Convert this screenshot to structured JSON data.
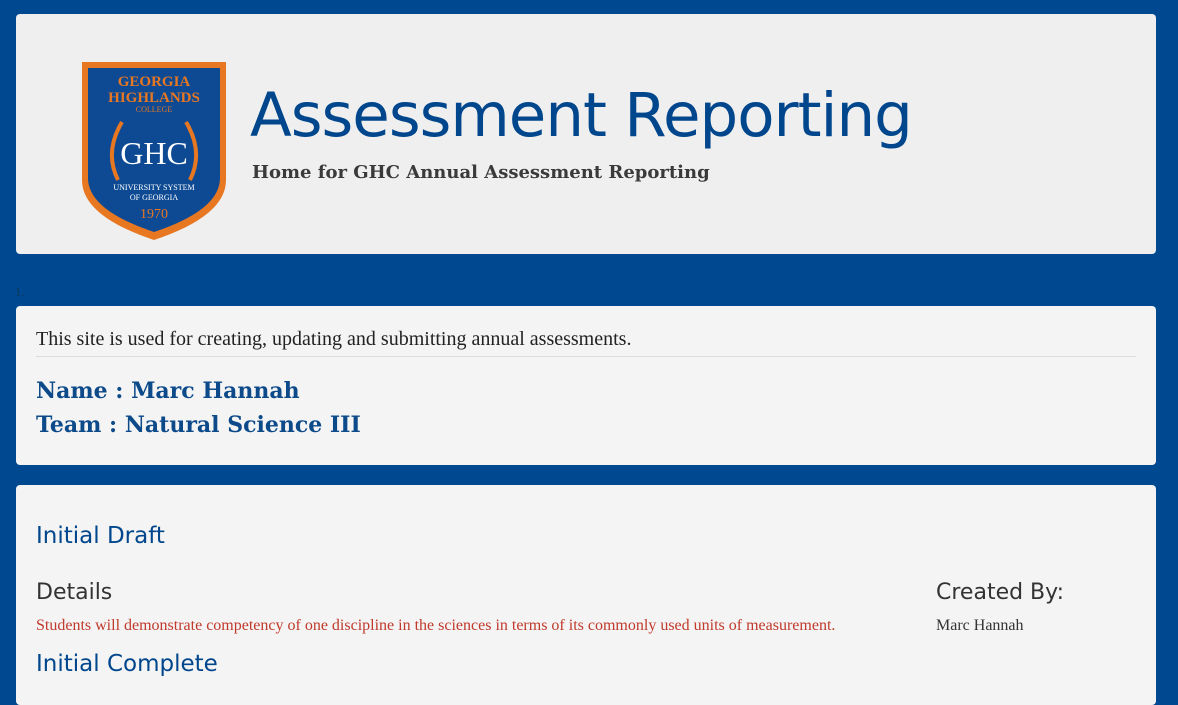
{
  "header": {
    "title": "Assessment Reporting",
    "subtitle": "Home for GHC Annual Assessment Reporting",
    "logo": {
      "line1": "GEORGIA",
      "line2": "HIGHLANDS",
      "line3": "COLLEGE",
      "monogram": "GHC",
      "line4": "UNIVERSITY SYSTEM",
      "line5": "OF GEORGIA",
      "year": "1970"
    }
  },
  "list_marker": "1.",
  "info": {
    "intro": "This site is used for creating, updating and submitting annual assessments.",
    "name_line": "Name : Marc Hannah",
    "team_line": "Team : Natural Science III"
  },
  "assessment": {
    "status_heading": "Initial Draft",
    "details_heading": "Details",
    "details_text": "Students will demonstrate competency of one discipline in the sciences in terms of its commonly used units of measurement.",
    "created_by_heading": "Created By:",
    "created_by_name": "Marc Hannah",
    "next_heading": "Initial Complete"
  },
  "colors": {
    "background": "#004990",
    "accent": "#00468c",
    "logo_orange": "#e87722",
    "details_text": "#c0392b"
  }
}
